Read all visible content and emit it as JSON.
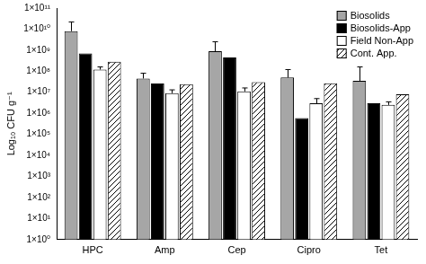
{
  "chart_data": {
    "type": "bar",
    "y_label": "Log₁₀ CFU g⁻¹",
    "categories": [
      "HPC",
      "Amp",
      "Cep",
      "Cipro",
      "Tet"
    ],
    "log": "y",
    "grid": false,
    "legend": "top-right",
    "ylim": [
      1,
      100000000000
    ],
    "yticks": [
      {
        "value": 1,
        "label": "1×10⁰"
      },
      {
        "value": 10,
        "label": "1×10¹"
      },
      {
        "value": 100,
        "label": "1×10²"
      },
      {
        "value": 1000,
        "label": "1×10³"
      },
      {
        "value": 10000,
        "label": "1×10⁴"
      },
      {
        "value": 100000,
        "label": "1×10⁵"
      },
      {
        "value": 1000000,
        "label": "1×10⁶"
      },
      {
        "value": 10000000,
        "label": "1×10⁷"
      },
      {
        "value": 100000000,
        "label": "1×10⁸"
      },
      {
        "value": 1000000000,
        "label": "1×10⁹"
      },
      {
        "value": 10000000000,
        "label": "1×10¹⁰"
      },
      {
        "value": 100000000000,
        "label": "1×10¹¹"
      }
    ],
    "series": [
      {
        "name": "Biosolids",
        "color": "#a6a6a6",
        "values": [
          8000000000,
          45000000,
          900000000,
          50000000,
          35000000
        ],
        "errors": [
          14000000000,
          35000000,
          1600000000,
          70000000,
          125000000
        ]
      },
      {
        "name": "Biosolids-App",
        "color": "#000000",
        "values": [
          700000000,
          26000000,
          450000000,
          600000,
          3000000
        ],
        "errors": [
          null,
          null,
          null,
          null,
          null
        ]
      },
      {
        "name": "Field Non-App",
        "color": "#ffffff",
        "values": [
          120000000,
          9000000,
          11000000,
          3000000,
          2500000
        ],
        "errors": [
          40000000,
          4000000,
          5000000,
          2000000,
          1000000
        ]
      },
      {
        "name": "Cont. App.",
        "color": "#ffffff",
        "marker": "hatch",
        "values": [
          280000000,
          24000000,
          30000000,
          27000000,
          8000000
        ],
        "errors": [
          null,
          null,
          null,
          null,
          null
        ]
      }
    ]
  }
}
